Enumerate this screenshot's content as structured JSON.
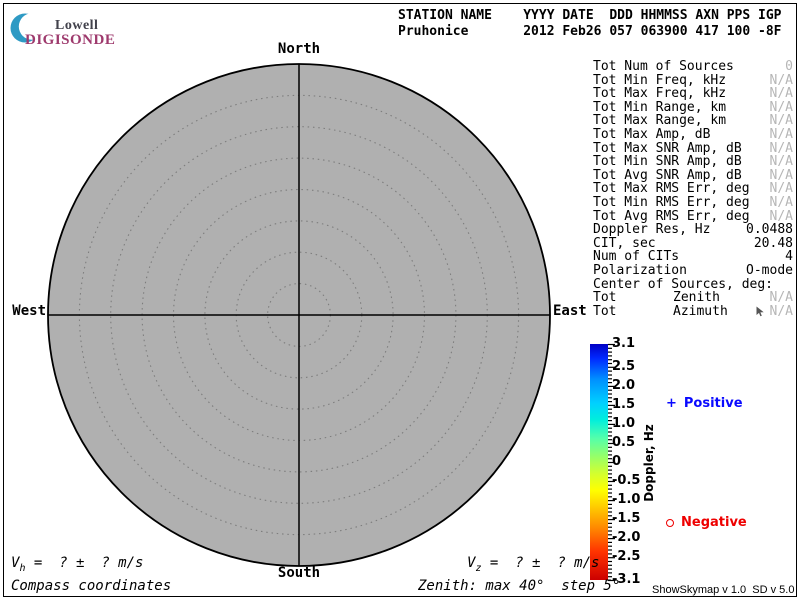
{
  "logo": {
    "line1": "Lowell",
    "line2": "DIGISONDE",
    "crescent_color": "#2e9ac4",
    "lowell_color": "#41414b",
    "digisonde_color": "#9e3a6d"
  },
  "header": {
    "columns_line": "STATION NAME    YYYY DATE  DDD HHMMSS AXN PPS IGP",
    "values_line": "Pruhonice       2012 Feb26 057 063900 417 100 -8F"
  },
  "compass": {
    "north": "North",
    "south": "South",
    "east": "East",
    "west": "West"
  },
  "skymap": {
    "fill": "#b0b0b0",
    "ring_color": "#7d7d7d",
    "axis_color": "#000000"
  },
  "stats": {
    "dim_color": "#b6b6b6",
    "rows": [
      {
        "label": "Tot Num of Sources",
        "value": "0",
        "dim": true
      },
      {
        "label": "Tot Min Freq, kHz",
        "value": "N/A",
        "dim": true
      },
      {
        "label": "Tot Max Freq, kHz",
        "value": "N/A",
        "dim": true
      },
      {
        "label": "Tot Min Range, km",
        "value": "N/A",
        "dim": true
      },
      {
        "label": "Tot Max Range, km",
        "value": "N/A",
        "dim": true
      },
      {
        "label": "Tot Max Amp, dB",
        "value": "N/A",
        "dim": true
      },
      {
        "label": "Tot Max SNR Amp, dB",
        "value": "N/A",
        "dim": true
      },
      {
        "label": "Tot Min SNR Amp, dB",
        "value": "N/A",
        "dim": true
      },
      {
        "label": "Tot Avg SNR Amp, dB",
        "value": "N/A",
        "dim": true
      },
      {
        "label": "Tot Max RMS Err, deg",
        "value": "N/A",
        "dim": true
      },
      {
        "label": "Tot Min RMS Err, deg",
        "value": "N/A",
        "dim": true
      },
      {
        "label": "Tot Avg RMS Err, deg",
        "value": "N/A",
        "dim": true
      },
      {
        "label": "Doppler Res, Hz",
        "value": "0.0488",
        "dim": false
      },
      {
        "label": "CIT, sec",
        "value": "20.48",
        "dim": false
      },
      {
        "label": "Num of CITs",
        "value": "4",
        "dim": false
      },
      {
        "label": "Polarization",
        "value": "O-mode",
        "dim": false
      },
      {
        "label": "Center of Sources, deg:",
        "value": "",
        "dim": false
      },
      {
        "label": "Tot",
        "mid": "Zenith",
        "value": "N/A",
        "dim": true
      },
      {
        "label": "Tot",
        "mid": "Azimuth",
        "value": "N/A",
        "dim": true,
        "cursor": true
      }
    ]
  },
  "legend": {
    "positive_marker": "+",
    "positive_label": "Positive",
    "positive_color": "#0909ff",
    "negative_label": "Negative",
    "negative_color": "#ee0000"
  },
  "footer": {
    "vh_prefix": "V",
    "vh_sub": "h",
    "vh_rest": " =  ? ±  ? m/s",
    "coords_label": "Compass coordinates",
    "vz_prefix": "V",
    "vz_sub": "z",
    "vz_rest": " =  ? ±  ? m/s",
    "zenith_label": "Zenith: max 40°  step 5°",
    "version_label": "ShowSkymap v 1.0  SD v 5.0"
  },
  "chart_data": {
    "type": "scatter",
    "projection": "polar-skymap",
    "title": "",
    "points": [],
    "num_sources": 0,
    "max_zenith_deg": 40,
    "ring_step_deg": 5,
    "zenith_rings_deg": [
      5,
      10,
      15,
      20,
      25,
      30,
      35,
      40
    ],
    "compass_labels": [
      "North",
      "East",
      "South",
      "West"
    ],
    "colorbar": {
      "label": "Doppler, Hz",
      "min": -3.1,
      "max": 3.1,
      "major_ticks": [
        "3.1",
        "2.5",
        "2.0",
        "1.5",
        "1.0",
        "0.5",
        "0",
        "-0.5",
        "-1.0",
        "-1.5",
        "-2.0",
        "-2.5",
        "-3.1"
      ],
      "minor_step": 0.1,
      "gradient": [
        {
          "p": 0,
          "c": "#0000c4"
        },
        {
          "p": 6,
          "c": "#0028ff"
        },
        {
          "p": 15,
          "c": "#0090ff"
        },
        {
          "p": 25,
          "c": "#00d0ff"
        },
        {
          "p": 32,
          "c": "#00eedd"
        },
        {
          "p": 40,
          "c": "#55ffaa"
        },
        {
          "p": 48,
          "c": "#99ff66"
        },
        {
          "p": 55,
          "c": "#d4ff2e"
        },
        {
          "p": 62,
          "c": "#ffff00"
        },
        {
          "p": 70,
          "c": "#ffc400"
        },
        {
          "p": 78,
          "c": "#ff8800"
        },
        {
          "p": 88,
          "c": "#ff3300"
        },
        {
          "p": 100,
          "c": "#cc0000"
        }
      ]
    }
  }
}
